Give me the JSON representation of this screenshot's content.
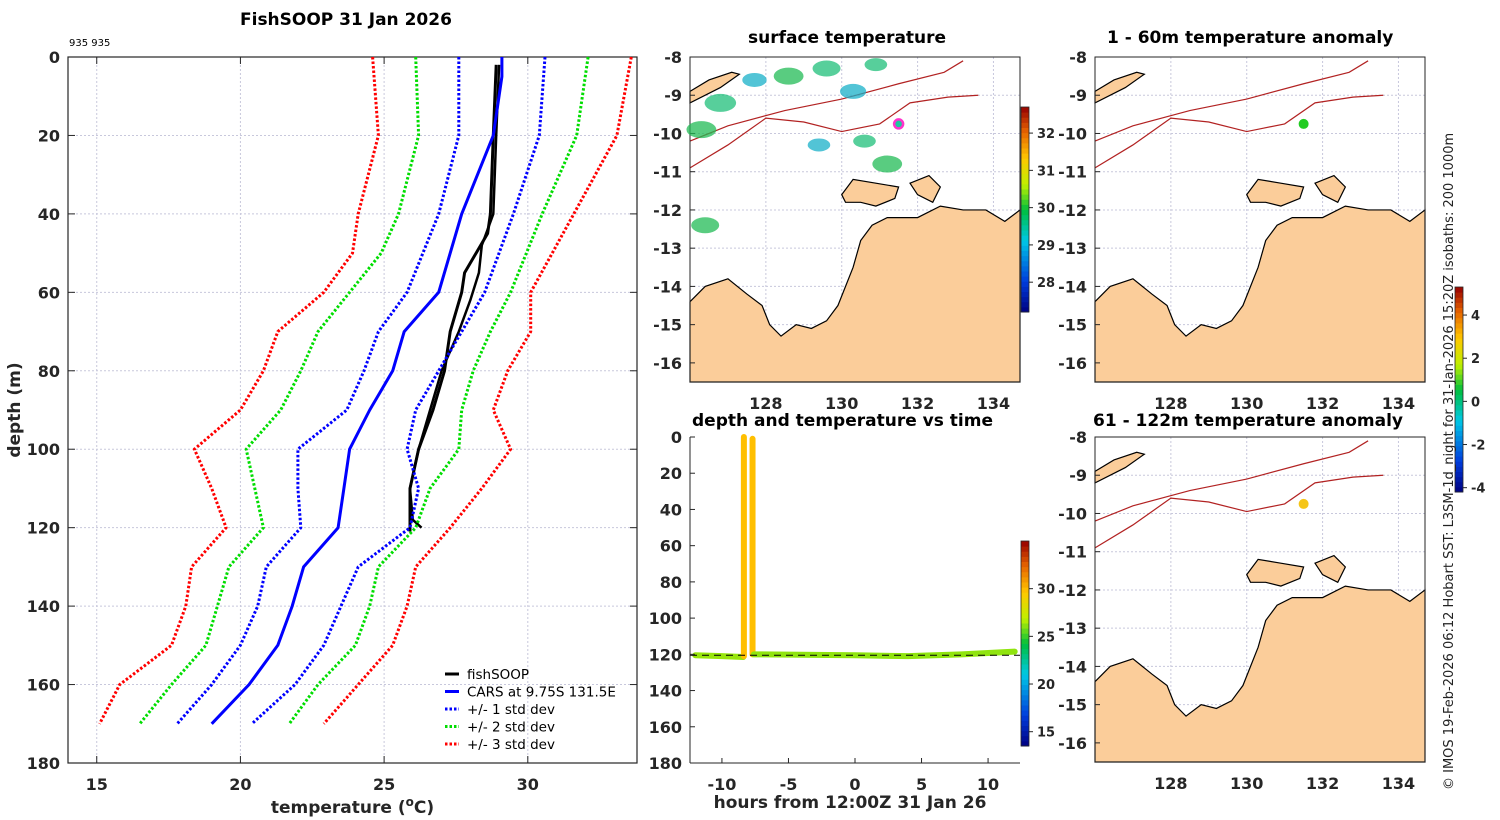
{
  "figure": {
    "copyright_note": "© IMOS 19-Feb-2026 06:12 Hobart SST: L3SM-1d_night for 31-Jan-2026 15:20Z isobaths: 200  1000m"
  },
  "colors": {
    "fishsoop": "#000000",
    "cars": "#0000ff",
    "std1": "#0000ff",
    "std2": "#00dd00",
    "std3": "#ff0000",
    "land": "#fbcd9a",
    "isobath": "#b22222",
    "grid": "#c8c8dc",
    "surface_marker_ring": "#ff33cc",
    "surface_marker_fill": "#1ec8a0",
    "anomaly_shallow_marker": "#22cc22",
    "anomaly_deep_marker": "#f5c518"
  },
  "chart_data": [
    {
      "id": "profile",
      "type": "line",
      "title": "FishSOOP 31 Jan 2026",
      "annotation": "935 935",
      "xlabel": "temperature (°C)",
      "xlabel_main": "temperature (",
      "xlabel_sup": "o",
      "xlabel_end": "C)",
      "ylabel": "depth (m)",
      "xlim": [
        14.0,
        33.8
      ],
      "ylim": [
        180,
        0
      ],
      "xticks": [
        15,
        20,
        25,
        30
      ],
      "yticks": [
        0,
        20,
        40,
        60,
        80,
        100,
        120,
        140,
        160,
        180
      ],
      "grid": true,
      "legend_position": "bottom-right",
      "series": [
        {
          "name": "fishSOOP",
          "style": "solid",
          "color_key": "fishsoop",
          "width": 3,
          "depth": [
            2,
            20,
            40,
            45,
            50,
            55,
            60,
            70,
            80,
            90,
            100,
            110,
            118,
            121
          ],
          "temp": [
            28.9,
            28.8,
            28.7,
            28.6,
            28.2,
            27.8,
            27.7,
            27.3,
            27.1,
            26.7,
            26.2,
            25.9,
            25.9,
            25.9
          ]
        },
        {
          "name": "fishSOOP cast 2",
          "legend": false,
          "style": "solid",
          "color_key": "fishsoop",
          "width": 2.5,
          "depth": [
            2,
            20,
            40,
            44,
            48,
            55,
            62,
            70,
            80,
            90,
            100,
            110,
            118,
            120
          ],
          "temp": [
            29.0,
            28.9,
            28.8,
            28.6,
            28.4,
            28.3,
            28.0,
            27.6,
            27.0,
            26.6,
            26.2,
            25.9,
            26.0,
            26.3
          ]
        },
        {
          "name": "CARS at 9.75S 131.5E",
          "style": "solid",
          "color_key": "cars",
          "width": 3,
          "depth": [
            0,
            5,
            20,
            40,
            60,
            70,
            80,
            90,
            100,
            110,
            120,
            130,
            140,
            150,
            160,
            170
          ],
          "temp": [
            29.1,
            29.1,
            28.8,
            27.7,
            26.9,
            25.7,
            25.3,
            24.5,
            23.8,
            23.6,
            23.4,
            22.2,
            21.8,
            21.3,
            20.3,
            19.0
          ]
        },
        {
          "name": "+/- 1 std dev",
          "style": "dotted",
          "color_key": "std1",
          "width": 3,
          "depth": [
            0,
            20,
            40,
            60,
            70,
            80,
            90,
            100,
            110,
            120,
            130,
            140,
            150,
            160,
            170
          ],
          "temp": [
            30.6,
            30.4,
            29.5,
            28.5,
            27.7,
            26.9,
            26.1,
            25.8,
            26.2,
            25.9,
            24.1,
            23.5,
            22.9,
            21.9,
            20.4
          ]
        },
        {
          "name": "+/- 1 std dev low",
          "legend": false,
          "style": "dotted",
          "color_key": "std1",
          "width": 3,
          "depth": [
            0,
            20,
            40,
            60,
            70,
            80,
            90,
            100,
            110,
            120,
            130,
            140,
            150,
            160,
            170
          ],
          "temp": [
            27.6,
            27.6,
            26.9,
            25.8,
            24.8,
            24.3,
            23.7,
            22.0,
            22.0,
            22.1,
            20.9,
            20.6,
            20.0,
            19.0,
            17.8
          ]
        },
        {
          "name": "+/- 2 std dev",
          "style": "dotted",
          "color_key": "std2",
          "width": 3,
          "depth": [
            0,
            20,
            40,
            60,
            70,
            80,
            90,
            100,
            110,
            120,
            130,
            140,
            150,
            160,
            170
          ],
          "temp": [
            32.1,
            31.7,
            30.5,
            29.4,
            28.7,
            28.1,
            27.7,
            27.6,
            26.6,
            26.1,
            24.8,
            24.5,
            24.0,
            22.7,
            21.7
          ]
        },
        {
          "name": "+/- 2 std dev low",
          "legend": false,
          "style": "dotted",
          "color_key": "std2",
          "width": 3,
          "depth": [
            0,
            20,
            40,
            50,
            60,
            70,
            80,
            90,
            100,
            110,
            120,
            130,
            140,
            150,
            160,
            170
          ],
          "temp": [
            26.1,
            26.2,
            25.5,
            24.9,
            23.8,
            22.7,
            22.1,
            21.4,
            20.2,
            20.5,
            20.8,
            19.6,
            19.2,
            18.8,
            17.6,
            16.5
          ]
        },
        {
          "name": "+/- 3 std dev",
          "style": "dotted",
          "color_key": "std3",
          "width": 3,
          "depth": [
            0,
            20,
            40,
            60,
            70,
            80,
            90,
            100,
            110,
            120,
            130,
            140,
            150,
            160,
            170
          ],
          "temp": [
            33.6,
            33.1,
            31.6,
            30.1,
            30.1,
            29.3,
            28.8,
            29.4,
            28.4,
            27.3,
            26.1,
            25.8,
            25.3,
            24.1,
            22.9
          ]
        },
        {
          "name": "+/- 3 std dev low",
          "legend": false,
          "style": "dotted",
          "color_key": "std3",
          "width": 3,
          "depth": [
            0,
            20,
            40,
            50,
            60,
            70,
            80,
            90,
            100,
            110,
            120,
            130,
            140,
            150,
            160,
            170
          ],
          "temp": [
            24.6,
            24.8,
            24.1,
            23.9,
            22.9,
            21.3,
            20.8,
            20.0,
            18.4,
            19.0,
            19.5,
            18.3,
            18.1,
            17.6,
            15.8,
            15.1
          ]
        }
      ]
    },
    {
      "id": "surface-map",
      "type": "heatmap",
      "title": "surface temperature",
      "xlim": [
        126.0,
        134.7
      ],
      "ylim": [
        -16.5,
        -8
      ],
      "xticks": [
        128,
        130,
        132,
        134
      ],
      "yticks": [
        -8,
        -9,
        -10,
        -11,
        -12,
        -13,
        -14,
        -15,
        -16
      ],
      "colorbar": {
        "min": 27.2,
        "max": 32.7,
        "ticks": [
          28,
          29,
          30,
          31,
          32
        ]
      },
      "marker": {
        "lon": 131.5,
        "lat": -9.75
      }
    },
    {
      "id": "anomaly-1-60",
      "type": "heatmap",
      "title": "1 - 60m temperature anomaly",
      "xlim": [
        126.0,
        134.7
      ],
      "ylim": [
        -16.5,
        -8
      ],
      "xticks": [
        128,
        130,
        132,
        134
      ],
      "yticks": [
        -8,
        -9,
        -10,
        -11,
        -12,
        -13,
        -14,
        -15,
        -16
      ],
      "marker": {
        "lon": 131.5,
        "lat": -9.75,
        "anomaly": 0.1
      }
    },
    {
      "id": "anomaly-61-122",
      "type": "heatmap",
      "title": "61 - 122m temperature anomaly",
      "xlim": [
        126.0,
        134.7
      ],
      "ylim": [
        -16.5,
        -8
      ],
      "xticks": [
        128,
        130,
        132,
        134
      ],
      "yticks": [
        -8,
        -9,
        -10,
        -11,
        -12,
        -13,
        -14,
        -15,
        -16
      ],
      "marker": {
        "lon": 131.5,
        "lat": -9.75,
        "anomaly": 2.5
      }
    },
    {
      "id": "anomaly-colorbar",
      "type": "heatmap",
      "min": -4.2,
      "max": 5.3,
      "ticks": [
        -4,
        -2,
        0,
        2,
        4
      ]
    },
    {
      "id": "depth-time",
      "type": "scatter",
      "title": "depth and temperature vs time",
      "xlabel": "hours from 12:00Z 31 Jan 26",
      "ylabel": "",
      "xlim": [
        -12.4,
        12.4
      ],
      "ylim": [
        180,
        0
      ],
      "xticks": [
        -10,
        -5,
        0,
        5,
        10
      ],
      "yticks": [
        0,
        20,
        40,
        60,
        80,
        100,
        120,
        140,
        160,
        180
      ],
      "colorbar": {
        "min": 13.5,
        "max": 35.0,
        "ticks": [
          15,
          20,
          25,
          30
        ]
      },
      "reference_depth": 120.5,
      "tracks": [
        {
          "hours": [
            -12.0,
            -10.0,
            -8.4
          ],
          "depth": [
            120.5,
            121,
            121.5
          ],
          "temp": 26.3
        },
        {
          "hours": [
            -8.35,
            -8.35
          ],
          "depth": [
            121,
            0
          ],
          "temp": 29.0,
          "vertical": true
        },
        {
          "hours": [
            -7.7,
            -7.7
          ],
          "depth": [
            1,
            120
          ],
          "temp": 29.0,
          "vertical": true
        },
        {
          "hours": [
            -7.6,
            -4.0,
            0.0,
            4.0,
            8.0,
            12.0
          ],
          "depth": [
            120,
            120.2,
            120.5,
            121,
            120,
            118.5
          ],
          "temp": 26.2
        }
      ]
    }
  ]
}
